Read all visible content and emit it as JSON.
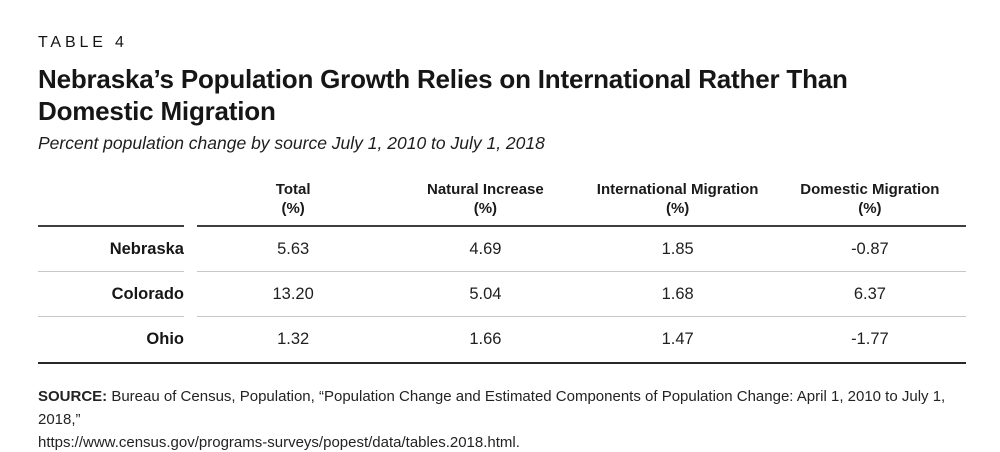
{
  "figure": {
    "kicker": "TABLE 4",
    "title_line1": "Nebraska’s Population Growth Relies on International Rather Than",
    "title_line2": "Domestic Migration",
    "subtitle": "Percent population change by source July 1, 2010 to July 1, 2018"
  },
  "table": {
    "columns": [
      {
        "label": "Total",
        "unit": "(%)"
      },
      {
        "label": "Natural Increase",
        "unit": "(%)"
      },
      {
        "label": "International Migration",
        "unit": "(%)"
      },
      {
        "label": "Domestic Migration",
        "unit": "(%)"
      }
    ],
    "rows": [
      {
        "label": "Nebraska",
        "values": [
          "5.63",
          "4.69",
          "1.85",
          "-0.87"
        ]
      },
      {
        "label": "Colorado",
        "values": [
          "13.20",
          "5.04",
          "1.68",
          "6.37"
        ]
      },
      {
        "label": "Ohio",
        "values": [
          "1.32",
          "1.66",
          "1.47",
          "-1.77"
        ]
      }
    ]
  },
  "source": {
    "label": "SOURCE:",
    "line1": " Bureau of Census, Population, “Population Change and Estimated Components of Population Change: April 1, 2010 to July 1, 2018,”",
    "line2": "https://www.census.gov/programs-surveys/popest/data/tables.2018.html."
  },
  "colors": {
    "text": "#1e1e1e",
    "rule_dark": "#3e3e3e",
    "rule_bottom": "#282828",
    "rule_light": "#c7c7c7",
    "background": "#ffffff"
  }
}
